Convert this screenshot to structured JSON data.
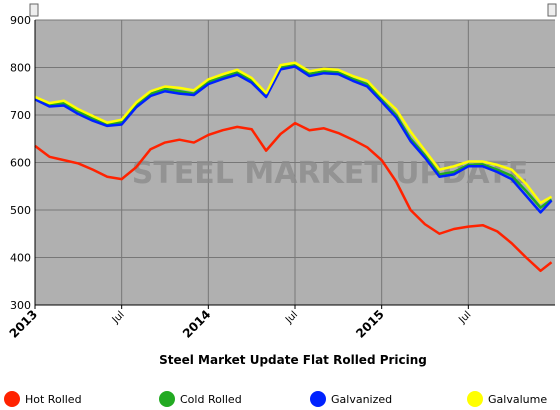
{
  "chart_data": {
    "type": "line",
    "title": "Steel Market Update Flat Rolled Pricing",
    "watermark": "STEEL MARKET UPDATE",
    "x": [
      2013.0,
      2013.0833,
      2013.1667,
      2013.25,
      2013.3333,
      2013.4167,
      2013.5,
      2013.5833,
      2013.6667,
      2013.75,
      2013.8333,
      2013.9167,
      2014.0,
      2014.0833,
      2014.1667,
      2014.25,
      2014.3333,
      2014.4167,
      2014.5,
      2014.5833,
      2014.6667,
      2014.75,
      2014.8333,
      2014.9167,
      2015.0,
      2015.0833,
      2015.1667,
      2015.25,
      2015.3333,
      2015.4167,
      2015.5,
      2015.5833,
      2015.6667,
      2015.75,
      2015.8333,
      2015.9167,
      2015.98
    ],
    "xlim": [
      2013,
      2016
    ],
    "xticks": [
      2013,
      {
        "value": 2013.5,
        "label": "Jul"
      },
      2014,
      {
        "value": 2014.5,
        "label": "Jul"
      },
      2015,
      {
        "value": 2015.5,
        "label": "Jul"
      }
    ],
    "ylim": [
      300,
      900
    ],
    "yticks": [
      300,
      400,
      500,
      600,
      700,
      800,
      900
    ],
    "grid": true,
    "series": [
      {
        "name": "Hot Rolled",
        "color": "#ff2200",
        "values": [
          635,
          612,
          605,
          598,
          585,
          570,
          565,
          590,
          628,
          642,
          648,
          642,
          658,
          668,
          675,
          670,
          625,
          660,
          683,
          668,
          672,
          662,
          648,
          632,
          605,
          560,
          500,
          470,
          450,
          460,
          465,
          468,
          455,
          430,
          400,
          372,
          390
        ]
      },
      {
        "name": "Cold Rolled",
        "color": "#22aa22",
        "values": [
          735,
          722,
          725,
          708,
          692,
          680,
          685,
          720,
          745,
          755,
          750,
          745,
          770,
          780,
          790,
          772,
          742,
          800,
          806,
          787,
          792,
          790,
          776,
          765,
          732,
          700,
          650,
          615,
          575,
          580,
          595,
          596,
          585,
          572,
          540,
          505,
          522
        ]
      },
      {
        "name": "Galvanized",
        "color": "#0022ff",
        "values": [
          733,
          718,
          720,
          702,
          688,
          677,
          680,
          716,
          740,
          750,
          745,
          742,
          765,
          776,
          785,
          768,
          738,
          796,
          802,
          782,
          788,
          786,
          772,
          760,
          728,
          695,
          645,
          610,
          570,
          575,
          592,
          592,
          580,
          565,
          530,
          495,
          520
        ]
      },
      {
        "name": "Galvalume",
        "color": "#ffff00",
        "values": [
          738,
          725,
          730,
          712,
          698,
          684,
          690,
          726,
          750,
          760,
          757,
          752,
          775,
          786,
          795,
          778,
          746,
          805,
          810,
          792,
          797,
          795,
          782,
          772,
          740,
          712,
          665,
          625,
          585,
          592,
          602,
          602,
          595,
          585,
          555,
          515,
          528
        ]
      }
    ]
  }
}
